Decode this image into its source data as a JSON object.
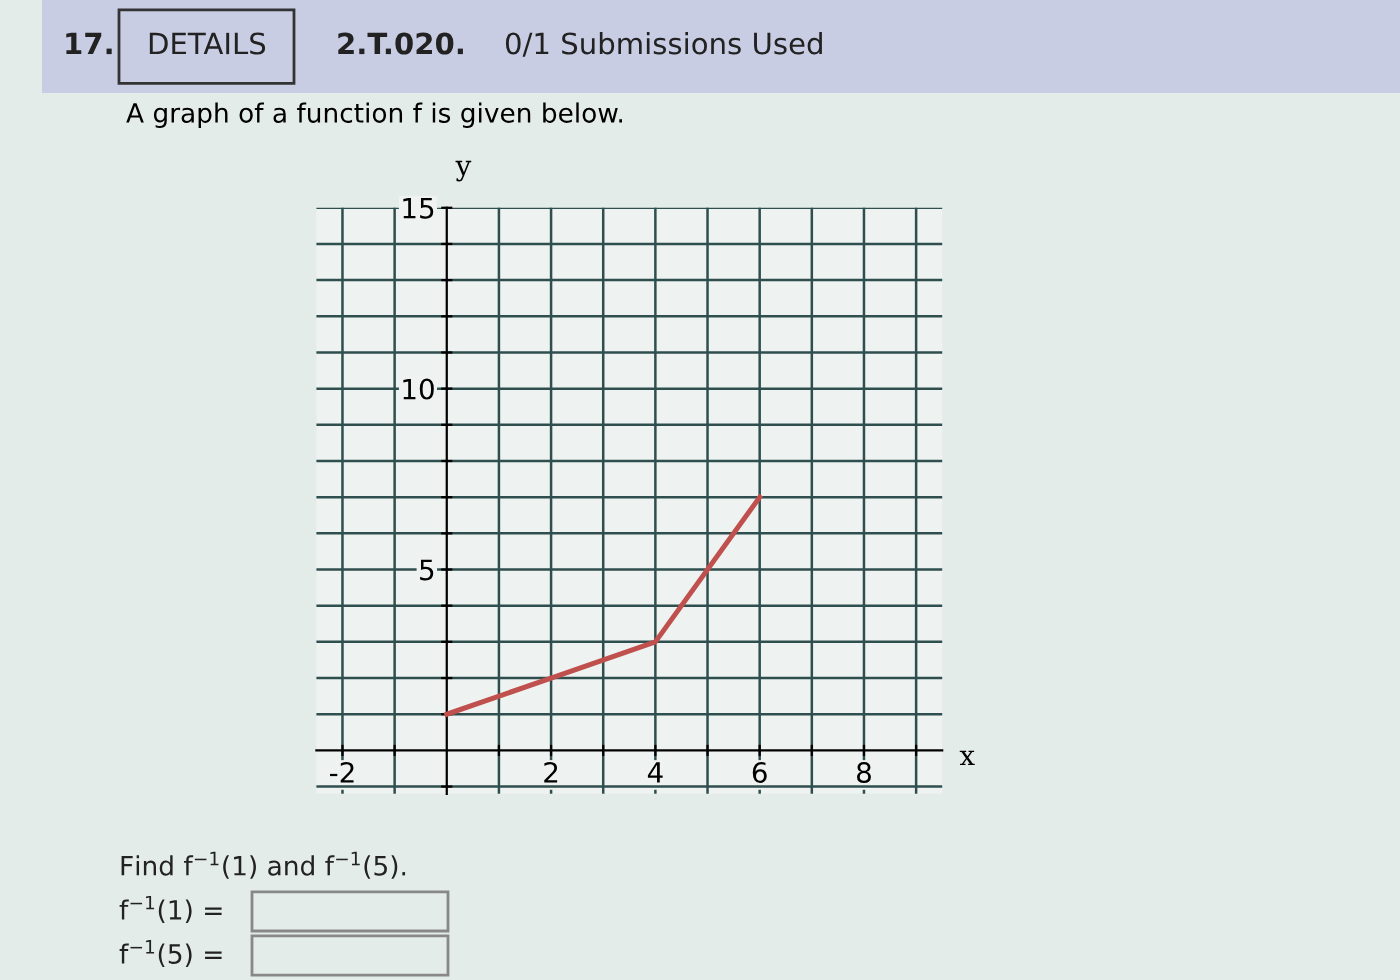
{
  "chart_data": {
    "type": "line",
    "title": "A graph of a function f is given below.",
    "xlabel": "x",
    "ylabel": "y",
    "x": [
      0,
      2,
      4,
      6
    ],
    "series": [
      {
        "color": "#c0504d",
        "values": [
          1,
          2,
          3,
          7
        ]
      }
    ],
    "xlim": [
      -2.5,
      9.5
    ],
    "ylim": [
      -1.2,
      15
    ],
    "xticks": [
      -2,
      {
        "value": -1,
        "label": null
      },
      {
        "value": 1,
        "label": null
      },
      2,
      {
        "value": 3,
        "label": null
      },
      4,
      {
        "value": 5,
        "label": null
      },
      6,
      {
        "value": 7,
        "label": null
      },
      8,
      {
        "value": 9,
        "label": null
      }
    ],
    "yticks": [
      {
        "value": -1,
        "label": null
      },
      {
        "value": 1,
        "label": null
      },
      {
        "value": 2,
        "label": null
      },
      {
        "value": 3,
        "label": null
      },
      {
        "value": 4,
        "label": null
      },
      5,
      {
        "value": 6,
        "label": null
      },
      {
        "value": 7,
        "label": null
      },
      {
        "value": 8,
        "label": null
      },
      {
        "value": 9,
        "label": null
      },
      10,
      {
        "value": 11,
        "label": null
      },
      {
        "value": 12,
        "label": null
      },
      {
        "value": 13,
        "label": null
      },
      {
        "value": 14,
        "label": null
      },
      15
    ],
    "grid": true,
    "marker": "none",
    "line_style": "solid",
    "annotations": [
      "17.",
      "DETAILS",
      "2.T.020.",
      "0/1 Submissions Used",
      "Find f$^{−1}$(1) and f$^{−1}$(5).",
      "f$^{−1}$(1) =",
      "f$^{−1}$(5) ="
    ]
  }
}
